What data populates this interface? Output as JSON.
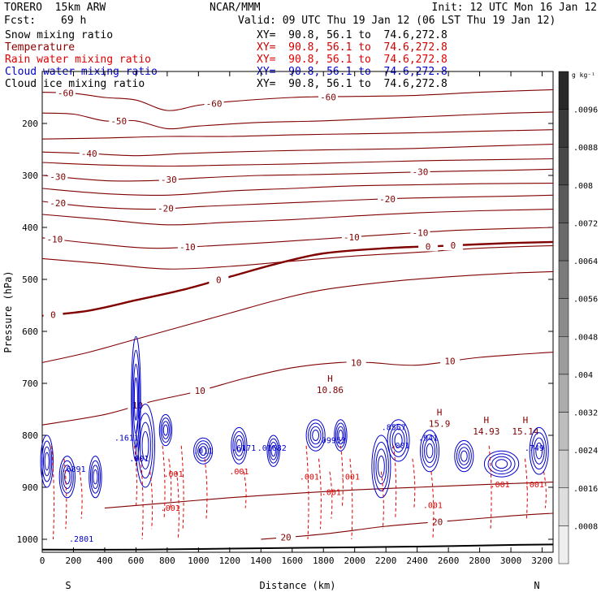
{
  "header": {
    "model": "TORERO  15km ARW",
    "center": "NCAR/MMM",
    "init": "Init: 12 UTC Mon 16 Jan 12",
    "fcst_label": "Fcst:",
    "fcst_value": "69 h",
    "valid": "Valid: 09 UTC Thu 19 Jan 12 (06 LST Thu 19 Jan 12)"
  },
  "fields": [
    {
      "label": "Snow mixing ratio",
      "xy": "XY=  90.8, 56.1 to  74.6,272.8",
      "color": "#000000",
      "xy_color": "#000000"
    },
    {
      "label": "Temperature",
      "xy": "XY=  90.8, 56.1 to  74.6,272.8",
      "color": "#8b0000",
      "xy_color": "#cc0000"
    },
    {
      "label": "Rain water mixing ratio",
      "xy": "XY=  90.8, 56.1 to  74.6,272.8",
      "color": "#e00000",
      "xy_color": "#e00000"
    },
    {
      "label": "Cloud water mixing ratio",
      "xy": "XY=  90.8, 56.1 to  74.6,272.8",
      "color": "#0000cc",
      "xy_color": "#0000cc"
    },
    {
      "label": "Cloud ice mixing ratio",
      "xy": "XY=  90.8, 56.1 to  74.6,272.8",
      "color": "#000000",
      "xy_color": "#000000"
    }
  ],
  "chart_data": {
    "type": "cross-section contour",
    "xlabel": "Distance (km)",
    "ylabel": "Pressure (hPa)",
    "x_ticks": [
      0,
      200,
      400,
      600,
      800,
      1000,
      1200,
      1400,
      1600,
      1800,
      2000,
      2200,
      2400,
      2600,
      2800,
      3000,
      3200
    ],
    "xlim": [
      0,
      3270
    ],
    "y_ticks": [
      200,
      300,
      400,
      500,
      600,
      700,
      800,
      900,
      1000
    ],
    "ylim": [
      100,
      1025
    ],
    "y_scale": "linear pressure, inverted",
    "x_end_labels": {
      "left": "S",
      "right": "N"
    },
    "colorbar": {
      "unit": "g kg⁻¹",
      "ticks": [
        ".0096",
        ".0088",
        ".008",
        ".0072",
        ".0064",
        ".0056",
        ".0048",
        ".004",
        ".0032",
        ".0024",
        ".0016",
        ".0008"
      ]
    },
    "temperature_contours": [
      {
        "level": -60,
        "points": [
          [
            0,
            140
          ],
          [
            200,
            142
          ],
          [
            400,
            150
          ],
          [
            600,
            155
          ],
          [
            800,
            175
          ],
          [
            1000,
            165
          ],
          [
            1200,
            158
          ],
          [
            1600,
            150
          ],
          [
            2000,
            148
          ],
          [
            2400,
            146
          ],
          [
            2800,
            140
          ],
          [
            3270,
            135
          ]
        ],
        "labels": [
          [
            150,
            -60,
            "-60"
          ],
          [
            1100,
            -60,
            "-60"
          ],
          [
            1830,
            -60,
            "-60"
          ]
        ]
      },
      {
        "level": -50,
        "points": [
          [
            0,
            180
          ],
          [
            200,
            182
          ],
          [
            400,
            195
          ],
          [
            600,
            195
          ],
          [
            800,
            210
          ],
          [
            1000,
            205
          ],
          [
            1400,
            198
          ],
          [
            1800,
            195
          ],
          [
            2200,
            190
          ],
          [
            2600,
            185
          ],
          [
            3000,
            180
          ],
          [
            3270,
            178
          ]
        ],
        "labels": [
          [
            490,
            -50,
            "-50"
          ]
        ]
      },
      {
        "level": -45,
        "points": [
          [
            0,
            230
          ],
          [
            400,
            228
          ],
          [
            800,
            225
          ],
          [
            1200,
            225
          ],
          [
            1600,
            222
          ],
          [
            2000,
            220
          ],
          [
            2400,
            218
          ],
          [
            2800,
            215
          ],
          [
            3270,
            212
          ]
        ],
        "labels": []
      },
      {
        "level": -40,
        "points": [
          [
            0,
            255
          ],
          [
            300,
            258
          ],
          [
            600,
            262
          ],
          [
            900,
            258
          ],
          [
            1200,
            255
          ],
          [
            1600,
            252
          ],
          [
            2000,
            250
          ],
          [
            2400,
            248
          ],
          [
            2800,
            244
          ],
          [
            3270,
            240
          ]
        ],
        "labels": [
          [
            300,
            -40,
            "-40"
          ]
        ]
      },
      {
        "level": -35,
        "points": [
          [
            0,
            275
          ],
          [
            400,
            280
          ],
          [
            800,
            282
          ],
          [
            1200,
            280
          ],
          [
            1600,
            278
          ],
          [
            2000,
            275
          ],
          [
            2400,
            272
          ],
          [
            2800,
            270
          ],
          [
            3270,
            268
          ]
        ],
        "labels": []
      },
      {
        "level": -30,
        "points": [
          [
            0,
            300
          ],
          [
            400,
            310
          ],
          [
            700,
            310
          ],
          [
            1000,
            305
          ],
          [
            1400,
            300
          ],
          [
            1800,
            298
          ],
          [
            2200,
            295
          ],
          [
            2600,
            292
          ],
          [
            3000,
            290
          ],
          [
            3270,
            288
          ]
        ],
        "labels": [
          [
            810,
            -30,
            "-30"
          ],
          [
            2420,
            -30,
            "-30"
          ],
          [
            100,
            -30,
            "-30"
          ]
        ]
      },
      {
        "level": -25,
        "points": [
          [
            0,
            325
          ],
          [
            400,
            335
          ],
          [
            800,
            338
          ],
          [
            1200,
            330
          ],
          [
            1600,
            325
          ],
          [
            2000,
            320
          ],
          [
            2400,
            318
          ],
          [
            2800,
            316
          ],
          [
            3270,
            315
          ]
        ],
        "labels": []
      },
      {
        "level": -20,
        "points": [
          [
            0,
            350
          ],
          [
            300,
            360
          ],
          [
            700,
            365
          ],
          [
            1000,
            360
          ],
          [
            1400,
            355
          ],
          [
            1800,
            350
          ],
          [
            2200,
            345
          ],
          [
            2600,
            342
          ],
          [
            3000,
            340
          ],
          [
            3270,
            338
          ]
        ],
        "labels": [
          [
            100,
            -20,
            "-20"
          ],
          [
            790,
            -20,
            "-20"
          ],
          [
            2210,
            -20,
            "-20"
          ]
        ]
      },
      {
        "level": -15,
        "points": [
          [
            0,
            375
          ],
          [
            400,
            385
          ],
          [
            800,
            395
          ],
          [
            1200,
            390
          ],
          [
            1600,
            385
          ],
          [
            2000,
            378
          ],
          [
            2400,
            372
          ],
          [
            2800,
            368
          ],
          [
            3270,
            365
          ]
        ],
        "labels": []
      },
      {
        "level": -10,
        "points": [
          [
            0,
            420
          ],
          [
            300,
            430
          ],
          [
            700,
            440
          ],
          [
            1100,
            435
          ],
          [
            1500,
            428
          ],
          [
            1900,
            420
          ],
          [
            2300,
            412
          ],
          [
            2700,
            405
          ],
          [
            3270,
            400
          ]
        ],
        "labels": [
          [
            80,
            -10,
            "-10"
          ],
          [
            930,
            -10,
            "-10"
          ],
          [
            1980,
            -10,
            "-10"
          ],
          [
            2420,
            -10,
            "-10"
          ]
        ]
      },
      {
        "level": -5,
        "points": [
          [
            0,
            460
          ],
          [
            400,
            470
          ],
          [
            800,
            480
          ],
          [
            1200,
            475
          ],
          [
            1600,
            465
          ],
          [
            2000,
            455
          ],
          [
            2400,
            448
          ],
          [
            2800,
            440
          ],
          [
            3270,
            435
          ]
        ],
        "labels": []
      },
      {
        "level": 0,
        "points": [
          [
            0,
            570
          ],
          [
            300,
            560
          ],
          [
            600,
            540
          ],
          [
            900,
            520
          ],
          [
            1200,
            495
          ],
          [
            1500,
            470
          ],
          [
            1800,
            450
          ],
          [
            2200,
            440
          ],
          [
            2600,
            435
          ],
          [
            3000,
            430
          ],
          [
            3270,
            428
          ]
        ],
        "labels": [
          [
            70,
            0,
            "0"
          ],
          [
            1130,
            0,
            "0"
          ],
          [
            2470,
            0,
            "0"
          ],
          [
            2630,
            0,
            "0"
          ]
        ]
      },
      {
        "level": 5,
        "points": [
          [
            0,
            660
          ],
          [
            300,
            640
          ],
          [
            600,
            615
          ],
          [
            900,
            590
          ],
          [
            1200,
            565
          ],
          [
            1500,
            540
          ],
          [
            1800,
            520
          ],
          [
            2200,
            505
          ],
          [
            2600,
            495
          ],
          [
            3000,
            488
          ],
          [
            3270,
            485
          ]
        ],
        "labels": []
      },
      {
        "level": 10,
        "points": [
          [
            0,
            780
          ],
          [
            400,
            760
          ],
          [
            700,
            735
          ],
          [
            1000,
            715
          ],
          [
            1300,
            690
          ],
          [
            1600,
            670
          ],
          [
            1900,
            660
          ],
          [
            2100,
            660
          ],
          [
            2400,
            665
          ],
          [
            2800,
            650
          ],
          [
            3270,
            640
          ]
        ],
        "labels": [
          [
            610,
            10,
            "10"
          ],
          [
            1010,
            10,
            "10"
          ],
          [
            2010,
            10,
            "10"
          ],
          [
            2610,
            10,
            "10"
          ]
        ]
      },
      {
        "level": 15,
        "points": [
          [
            400,
            940
          ],
          [
            800,
            930
          ],
          [
            1200,
            920
          ],
          [
            1600,
            912
          ],
          [
            2000,
            905
          ],
          [
            2400,
            900
          ],
          [
            2800,
            895
          ],
          [
            3270,
            890
          ]
        ],
        "labels": []
      },
      {
        "level": 20,
        "points": [
          [
            1400,
            1000
          ],
          [
            1800,
            990
          ],
          [
            2200,
            975
          ],
          [
            2600,
            965
          ],
          [
            3000,
            955
          ],
          [
            3270,
            950
          ]
        ],
        "labels": [
          [
            2530,
            20,
            "20"
          ],
          [
            1560,
            20,
            "20"
          ]
        ]
      }
    ],
    "highs": [
      {
        "x": 1770,
        "p": 700,
        "value": "10.86"
      },
      {
        "x": 2470,
        "p": 765,
        "value": "15.9"
      },
      {
        "x": 2770,
        "p": 780,
        "value": "14.93"
      },
      {
        "x": 3020,
        "p": 780,
        "value": "15.14"
      }
    ],
    "rain_labels": [
      [
        1710,
        "p885",
        ".001"
      ],
      [
        1970,
        "p885",
        ".001"
      ],
      [
        1850,
        "p915",
        ".001"
      ],
      [
        2500,
        "p940",
        ".001"
      ],
      [
        840,
        "p880",
        ".001"
      ],
      [
        1260,
        "p875",
        ".001"
      ],
      [
        820,
        "p945",
        ".001"
      ],
      [
        2930,
        "p900",
        ".001"
      ],
      [
        3150,
        "p900",
        ".001"
      ]
    ],
    "cloud_labels": [
      [
        200,
        "p870",
        ".6891"
      ],
      [
        250,
        "p1005",
        ".2801"
      ],
      [
        540,
        "p810",
        ".1611"
      ],
      [
        620,
        "p850",
        ".001"
      ],
      [
        1030,
        "p835",
        ".011"
      ],
      [
        1290,
        "p830",
        ".6171"
      ],
      [
        1470,
        "p830",
        ".01682"
      ],
      [
        1850,
        "p815",
        ".09953"
      ],
      [
        2250,
        "p790",
        ".8567"
      ],
      [
        2290,
        "p825",
        ".001"
      ],
      [
        2470,
        "p810",
        ".941"
      ],
      [
        3150,
        "p830",
        ".749"
      ]
    ],
    "terrain_line": [
      [
        0,
        1020
      ],
      [
        600,
        1020
      ],
      [
        1200,
        1018
      ],
      [
        1800,
        1016
      ],
      [
        2400,
        1014
      ],
      [
        3000,
        1011
      ],
      [
        3270,
        1010
      ]
    ]
  }
}
